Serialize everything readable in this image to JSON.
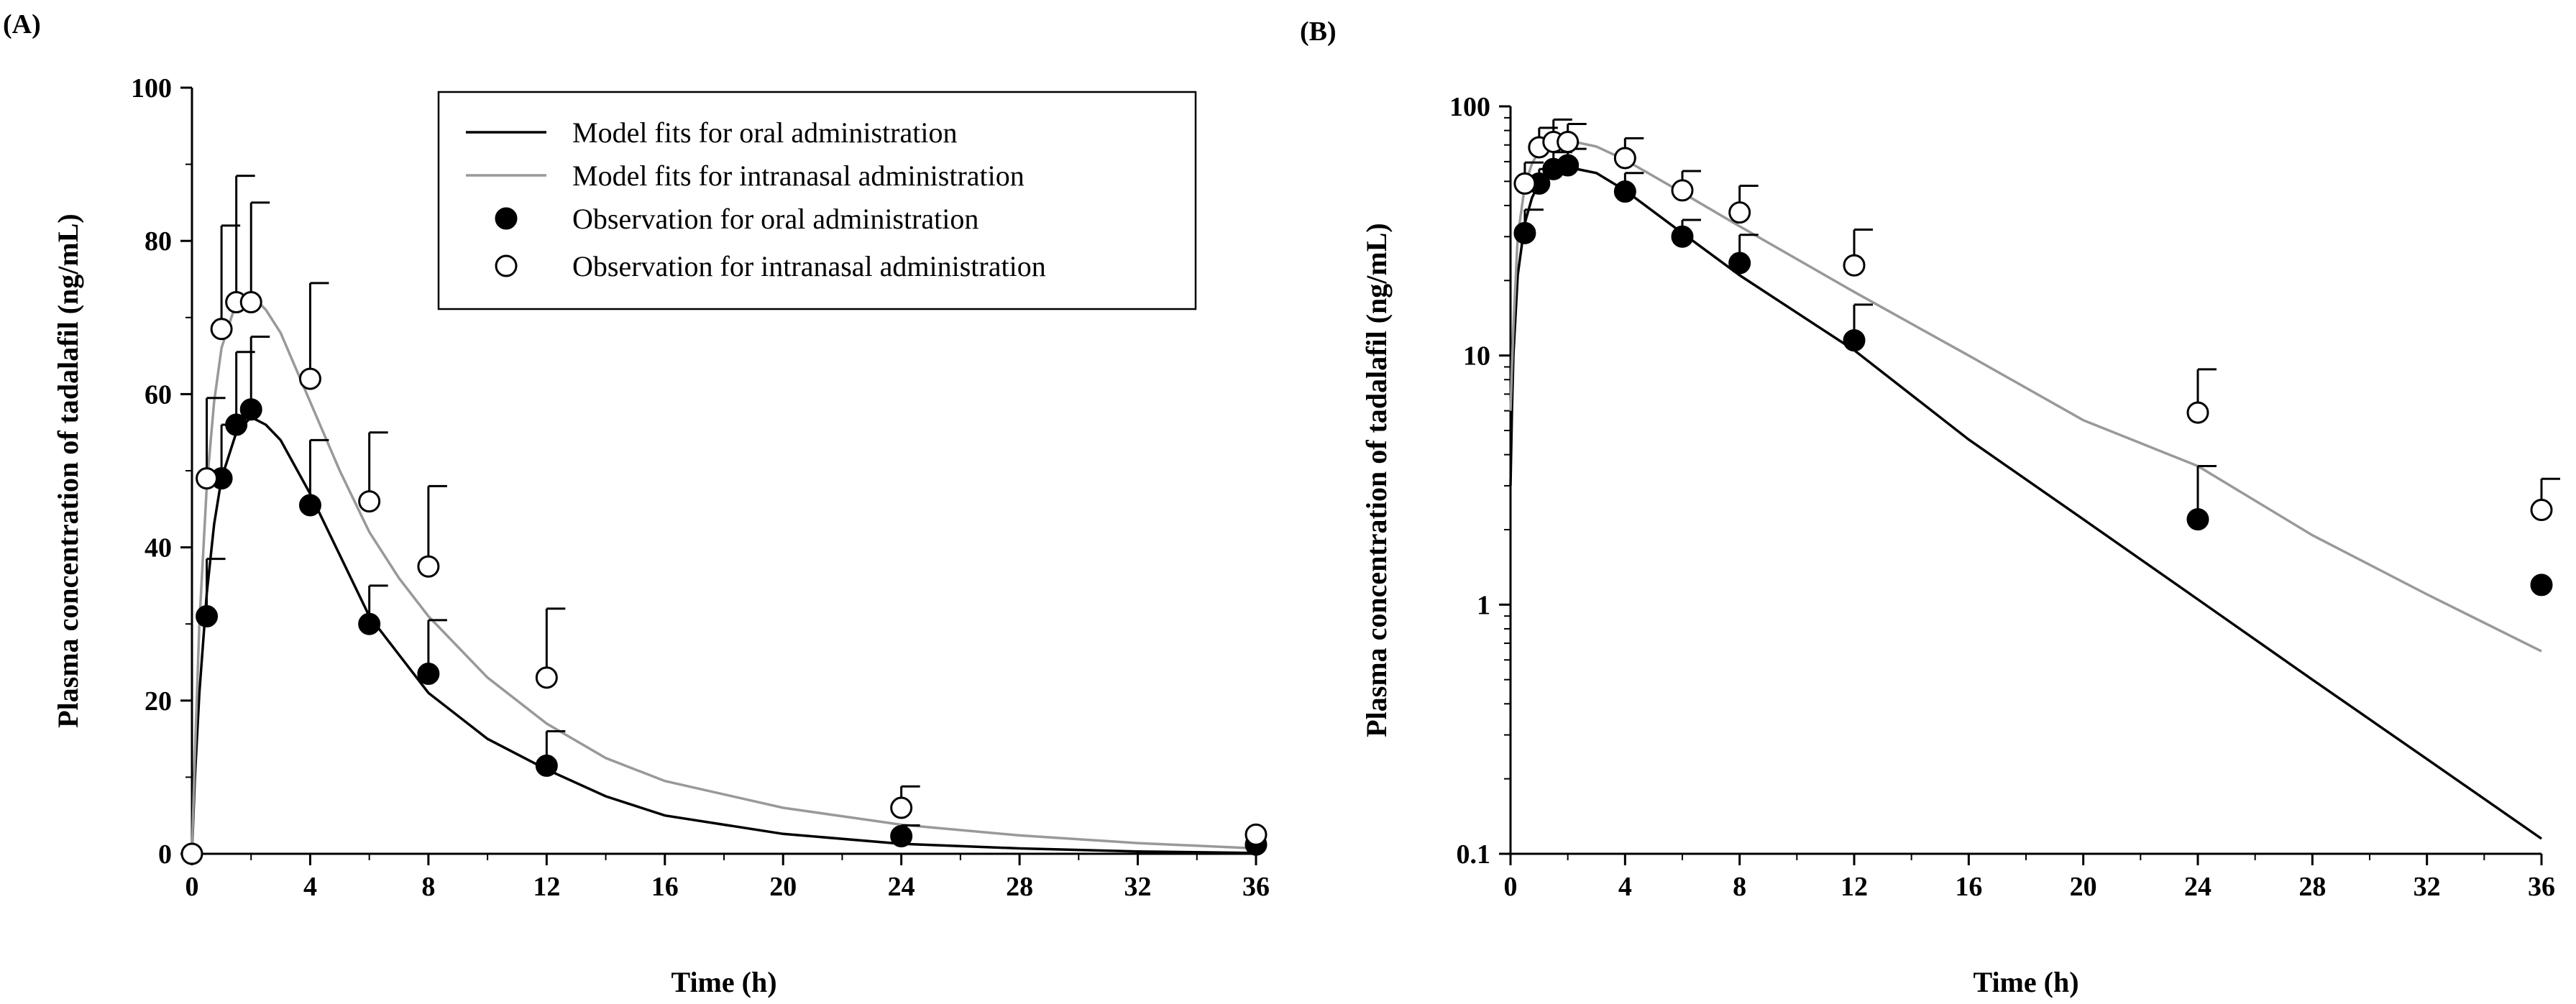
{
  "chart_data": [
    {
      "panel": "(A)",
      "type": "line",
      "yscale": "linear",
      "xlabel": "Time (h)",
      "ylabel": "Plasma concentration of tadalafil (ng/mL)",
      "xlim": [
        0,
        36
      ],
      "ylim": [
        0,
        100
      ],
      "xticks": [
        0,
        4,
        8,
        12,
        16,
        20,
        24,
        28,
        32,
        36
      ],
      "yticks": [
        0,
        20,
        40,
        60,
        80,
        100
      ],
      "xtick_labels": [
        "0",
        "4",
        "8",
        "12",
        "16",
        "20",
        "24",
        "28",
        "32",
        "36"
      ],
      "ytick_labels": [
        "0",
        "20",
        "40",
        "60",
        "80",
        "100"
      ],
      "legend": {
        "position": "top-right",
        "entries": [
          "Model fits for oral administration",
          "Model fits for intranasal administration",
          "Observation for oral administration",
          "Observation for intranasal administration"
        ]
      },
      "series": [
        {
          "name": "Model fits for oral administration",
          "kind": "line",
          "color": "#000000",
          "x": [
            0,
            0.1,
            0.25,
            0.5,
            0.75,
            1,
            1.5,
            2,
            2.5,
            3,
            4,
            5,
            6,
            7,
            8,
            10,
            12,
            14,
            16,
            20,
            24,
            28,
            32,
            36
          ],
          "y": [
            0,
            10,
            21,
            34,
            43,
            49,
            55,
            57,
            56,
            54,
            47,
            39,
            31,
            26,
            21,
            15,
            11,
            7.5,
            5,
            2.6,
            1.3,
            0.7,
            0.3,
            0.1
          ]
        },
        {
          "name": "Model fits for intranasal administration",
          "kind": "line",
          "color": "#999999",
          "x": [
            0,
            0.1,
            0.25,
            0.5,
            0.75,
            1,
            1.5,
            2,
            2.5,
            3,
            4,
            5,
            6,
            7,
            8,
            10,
            12,
            14,
            16,
            20,
            24,
            28,
            32,
            36
          ],
          "y": [
            0,
            13,
            30,
            48,
            59,
            66,
            72,
            73,
            71,
            68,
            59,
            50,
            42,
            36,
            31,
            23,
            17,
            12.5,
            9.5,
            6,
            3.8,
            2.4,
            1.4,
            0.7
          ]
        },
        {
          "name": "Observation for oral administration",
          "kind": "scatter",
          "marker": "filled-circle",
          "x": [
            0.5,
            1,
            1.5,
            2,
            4,
            6,
            8,
            12,
            24,
            36
          ],
          "y": [
            31,
            49,
            56,
            58,
            45.5,
            30,
            23.5,
            11.5,
            2.3,
            1.2
          ],
          "sd_upper": [
            38.5,
            56,
            65.5,
            67.5,
            54,
            35,
            30.5,
            16,
            3.7,
            null
          ]
        },
        {
          "name": "Observation for intranasal administration",
          "kind": "scatter",
          "marker": "open-circle",
          "x": [
            0,
            0.5,
            1,
            1.5,
            2,
            4,
            6,
            8,
            12,
            24,
            36
          ],
          "y": [
            0,
            49,
            68.5,
            72,
            72,
            62,
            46,
            37.5,
            23,
            6,
            2.5
          ],
          "sd_upper": [
            null,
            59.5,
            82,
            88.5,
            85,
            74.5,
            55,
            48,
            32,
            8.8,
            null
          ]
        }
      ]
    },
    {
      "panel": "(B)",
      "type": "line",
      "yscale": "log",
      "xlabel": "Time (h)",
      "ylabel": "Plasma concentration of tadalafil (ng/mL)",
      "xlim": [
        0,
        36
      ],
      "ylim": [
        0.1,
        100
      ],
      "xticks": [
        0,
        4,
        8,
        12,
        16,
        20,
        24,
        28,
        32,
        36
      ],
      "yticks": [
        0.1,
        1,
        10,
        100
      ],
      "xtick_labels": [
        "0",
        "4",
        "8",
        "12",
        "16",
        "20",
        "24",
        "28",
        "32",
        "36"
      ],
      "ytick_labels": [
        "0.1",
        "1",
        "10",
        "100"
      ],
      "series": [
        {
          "name": "Model fits for oral administration",
          "kind": "line",
          "color": "#000000",
          "x": [
            0,
            0.05,
            0.1,
            0.25,
            0.5,
            0.75,
            1,
            1.5,
            2,
            3,
            4,
            6,
            8,
            12,
            16,
            20,
            24,
            28,
            32,
            36
          ],
          "y": [
            3,
            6,
            10,
            21,
            34,
            43,
            49,
            55,
            57,
            54,
            46,
            31,
            21,
            10.5,
            4.6,
            2.2,
            1.05,
            0.5,
            0.24,
            0.115
          ]
        },
        {
          "name": "Model fits for intranasal administration",
          "kind": "line",
          "color": "#999999",
          "x": [
            0,
            0.05,
            0.1,
            0.25,
            0.5,
            0.75,
            1,
            1.5,
            2,
            3,
            4,
            6,
            8,
            12,
            16,
            20,
            24,
            28,
            32,
            36
          ],
          "y": [
            6,
            9,
            13,
            30,
            48,
            59,
            66,
            72,
            73,
            69,
            61,
            45,
            33,
            18,
            10,
            5.5,
            3.6,
            1.9,
            1.1,
            0.65
          ]
        },
        {
          "name": "Observation for oral administration",
          "kind": "scatter",
          "marker": "filled-circle",
          "x": [
            0.5,
            1,
            1.5,
            2,
            4,
            6,
            8,
            12,
            24,
            36
          ],
          "y": [
            31,
            49,
            56,
            58,
            45.5,
            30,
            23.5,
            11.5,
            2.2,
            1.2
          ],
          "sd_upper": [
            38.5,
            56,
            65.5,
            67.5,
            54,
            35,
            30.5,
            16,
            3.6,
            null
          ]
        },
        {
          "name": "Observation for intranasal administration",
          "kind": "scatter",
          "marker": "open-circle",
          "x": [
            0.5,
            1,
            1.5,
            2,
            4,
            6,
            8,
            12,
            24,
            36
          ],
          "y": [
            49,
            68.5,
            72,
            72,
            62,
            46,
            37.5,
            23,
            5.9,
            2.4
          ],
          "sd_upper": [
            59.5,
            82,
            88.5,
            85,
            74.5,
            55,
            48,
            32,
            8.8,
            3.2
          ]
        }
      ]
    }
  ]
}
